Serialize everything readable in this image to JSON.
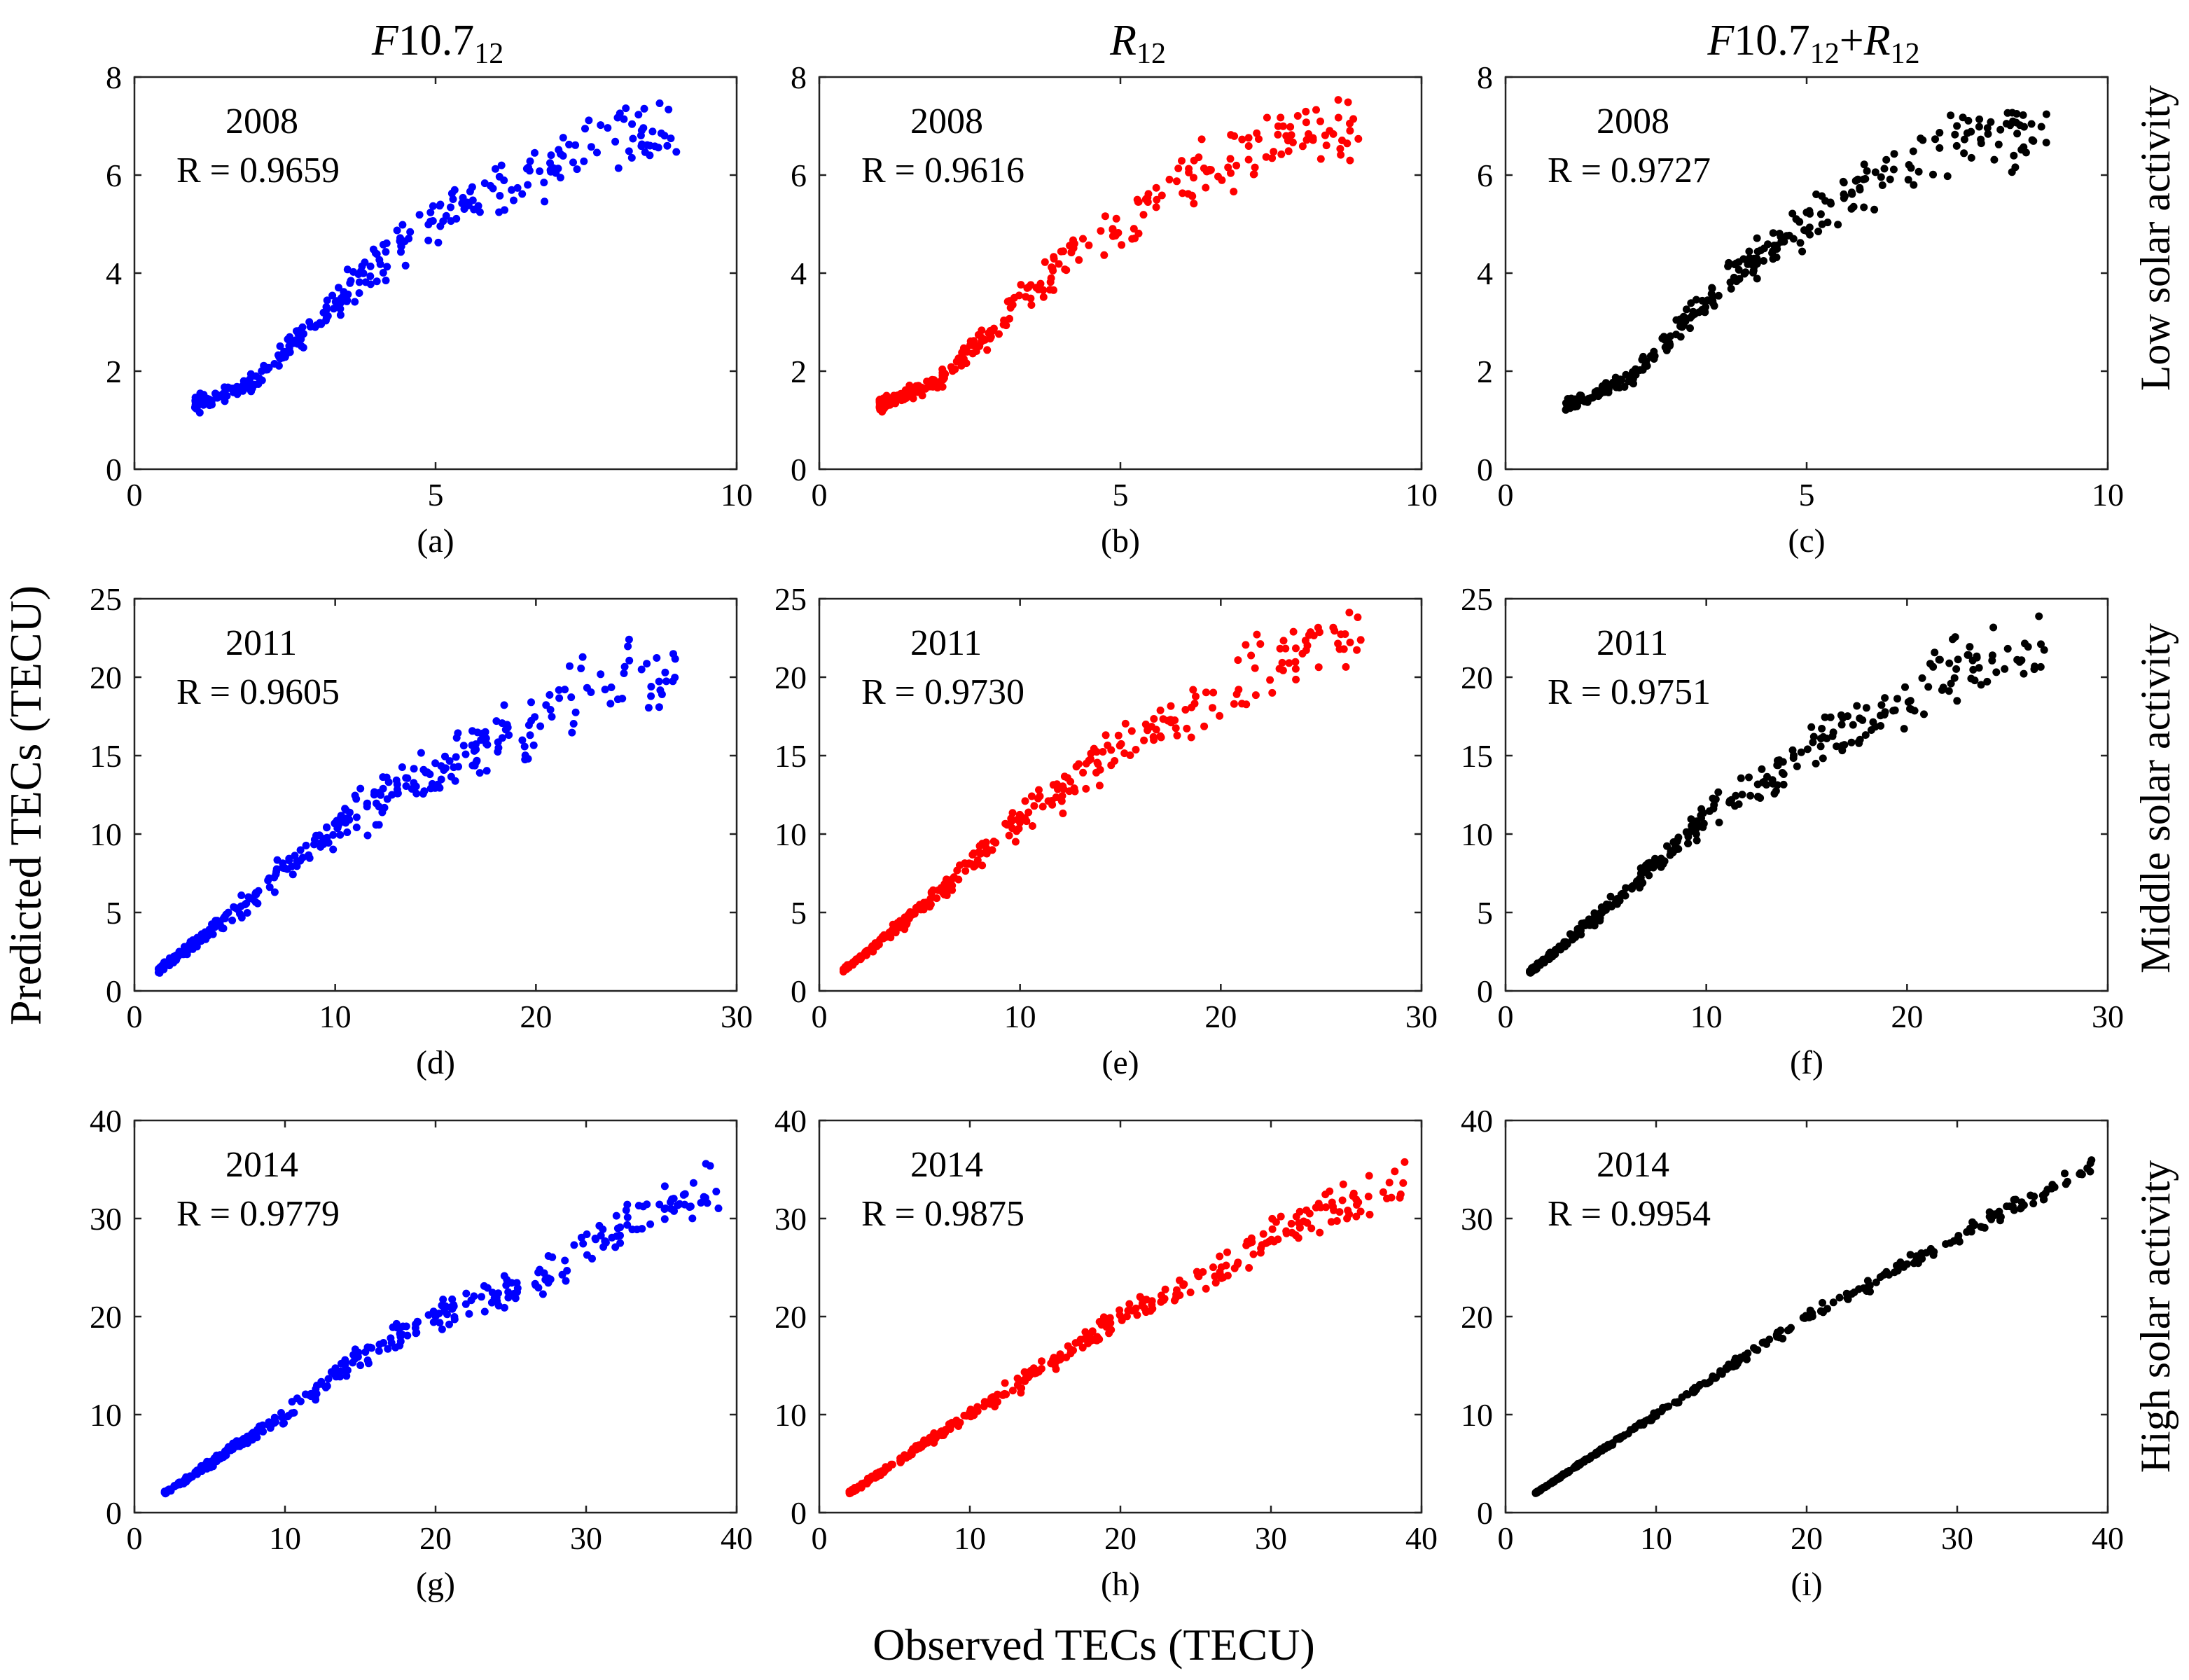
{
  "figure": {
    "y_label": "Predicted TECs (TECU)",
    "x_label": "Observed TECs (TECU)",
    "columns": [
      {
        "title_italic": "F",
        "title_main": "10.7",
        "title_sub": "12",
        "color": "#0000ff"
      },
      {
        "title_italic": "R",
        "title_main": "",
        "title_sub": "12",
        "color": "#ff0000"
      },
      {
        "title_italic": "F",
        "title_main": "10.7",
        "title_sub": "12",
        "title_plus": "+",
        "title_italic2": "R",
        "title_sub2": "12",
        "color": "#000000"
      }
    ],
    "rows": [
      {
        "label": "Low solar activity"
      },
      {
        "label": "Middle solar activity"
      },
      {
        "label": "High solar activity"
      }
    ]
  },
  "chart_data": [
    {
      "type": "scatter",
      "panel": "(a)",
      "year": "2008",
      "r_text": "R = 0.9659",
      "color": "#0000ff",
      "xlim": [
        0,
        10
      ],
      "ylim": [
        0,
        8
      ],
      "xticks": [
        0,
        5,
        10
      ],
      "yticks": [
        0,
        2,
        4,
        6,
        8
      ],
      "seed": 11,
      "n": 300,
      "noise": 0.1,
      "pts": [
        [
          1.0,
          1.3
        ],
        [
          2,
          1.8
        ],
        [
          3,
          3.0
        ],
        [
          4,
          4.2
        ],
        [
          5,
          5.0
        ],
        [
          6,
          5.7
        ],
        [
          7,
          6.3
        ],
        [
          8,
          6.8
        ],
        [
          9,
          6.8
        ]
      ]
    },
    {
      "type": "scatter",
      "panel": "(b)",
      "year": "2008",
      "r_text": "R = 0.9616",
      "color": "#ff0000",
      "xlim": [
        0,
        10
      ],
      "ylim": [
        0,
        8
      ],
      "xticks": [
        0,
        5,
        10
      ],
      "yticks": [
        0,
        2,
        4,
        6,
        8
      ],
      "seed": 12,
      "n": 300,
      "noise": 0.1,
      "pts": [
        [
          1.0,
          1.3
        ],
        [
          2,
          1.8
        ],
        [
          3,
          3.0
        ],
        [
          4,
          4.2
        ],
        [
          5,
          5.0
        ],
        [
          6,
          5.8
        ],
        [
          7,
          6.5
        ],
        [
          8,
          6.9
        ],
        [
          9,
          6.9
        ]
      ]
    },
    {
      "type": "scatter",
      "panel": "(c)",
      "year": "2008",
      "r_text": "R = 0.9727",
      "color": "#000000",
      "xlim": [
        0,
        10
      ],
      "ylim": [
        0,
        8
      ],
      "xticks": [
        0,
        5,
        10
      ],
      "yticks": [
        0,
        2,
        4,
        6,
        8
      ],
      "seed": 13,
      "n": 300,
      "noise": 0.09,
      "pts": [
        [
          1.0,
          1.3
        ],
        [
          2,
          1.8
        ],
        [
          3,
          3.0
        ],
        [
          4,
          4.2
        ],
        [
          5,
          5.0
        ],
        [
          6,
          5.8
        ],
        [
          7,
          6.4
        ],
        [
          8,
          6.9
        ],
        [
          9,
          6.9
        ]
      ]
    },
    {
      "type": "scatter",
      "panel": "(d)",
      "year": "2011",
      "r_text": "R = 0.9605",
      "color": "#0000ff",
      "xlim": [
        0,
        30
      ],
      "ylim": [
        0,
        25
      ],
      "xticks": [
        0,
        10,
        20,
        30
      ],
      "yticks": [
        0,
        5,
        10,
        15,
        20,
        25
      ],
      "seed": 21,
      "n": 330,
      "noise": 0.13,
      "pts": [
        [
          1.2,
          1.3
        ],
        [
          5,
          5
        ],
        [
          10,
          10.5
        ],
        [
          15,
          14.5
        ],
        [
          20,
          17
        ],
        [
          22,
          18.6
        ],
        [
          27,
          20.4
        ]
      ]
    },
    {
      "type": "scatter",
      "panel": "(e)",
      "year": "2011",
      "r_text": "R = 0.9730",
      "color": "#ff0000",
      "xlim": [
        0,
        30
      ],
      "ylim": [
        0,
        25
      ],
      "xticks": [
        0,
        10,
        20,
        30
      ],
      "yticks": [
        0,
        5,
        10,
        15,
        20,
        25
      ],
      "seed": 22,
      "n": 330,
      "noise": 0.1,
      "pts": [
        [
          1.2,
          1.3
        ],
        [
          5,
          5.2
        ],
        [
          10,
          11
        ],
        [
          15,
          15.5
        ],
        [
          20,
          19
        ],
        [
          22,
          21
        ],
        [
          27,
          22.5
        ]
      ]
    },
    {
      "type": "scatter",
      "panel": "(f)",
      "year": "2011",
      "r_text": "R = 0.9751",
      "color": "#000000",
      "xlim": [
        0,
        30
      ],
      "ylim": [
        0,
        25
      ],
      "xticks": [
        0,
        10,
        20,
        30
      ],
      "yticks": [
        0,
        5,
        10,
        15,
        20,
        25
      ],
      "seed": 23,
      "n": 330,
      "noise": 0.1,
      "pts": [
        [
          1.2,
          1.2
        ],
        [
          5,
          5.2
        ],
        [
          10,
          11
        ],
        [
          15,
          15.2
        ],
        [
          20,
          18.5
        ],
        [
          22,
          20.5
        ],
        [
          27,
          21.8
        ]
      ]
    },
    {
      "type": "scatter",
      "panel": "(g)",
      "year": "2014",
      "r_text": "R = 0.9779",
      "color": "#0000ff",
      "xlim": [
        0,
        40
      ],
      "ylim": [
        0,
        40
      ],
      "xticks": [
        0,
        10,
        20,
        30,
        40
      ],
      "yticks": [
        0,
        10,
        20,
        30,
        40
      ],
      "seed": 31,
      "n": 340,
      "noise": 0.08,
      "pts": [
        [
          2,
          2
        ],
        [
          10,
          10
        ],
        [
          15,
          16
        ],
        [
          20,
          20
        ],
        [
          27,
          24
        ],
        [
          30,
          27.5
        ],
        [
          39,
          34
        ]
      ]
    },
    {
      "type": "scatter",
      "panel": "(h)",
      "year": "2014",
      "r_text": "R = 0.9875",
      "color": "#ff0000",
      "xlim": [
        0,
        40
      ],
      "ylim": [
        0,
        40
      ],
      "xticks": [
        0,
        10,
        20,
        30,
        40
      ],
      "yticks": [
        0,
        10,
        20,
        30,
        40
      ],
      "seed": 32,
      "n": 340,
      "noise": 0.07,
      "pts": [
        [
          2,
          2
        ],
        [
          10,
          10
        ],
        [
          15,
          15
        ],
        [
          20,
          20
        ],
        [
          27,
          25
        ],
        [
          30,
          28.5
        ],
        [
          39,
          34
        ]
      ]
    },
    {
      "type": "scatter",
      "panel": "(i)",
      "year": "2014",
      "r_text": "R = 0.9954",
      "color": "#000000",
      "xlim": [
        0,
        40
      ],
      "ylim": [
        0,
        40
      ],
      "xticks": [
        0,
        10,
        20,
        30,
        40
      ],
      "yticks": [
        0,
        10,
        20,
        30,
        40
      ],
      "seed": 33,
      "n": 340,
      "noise": 0.03,
      "pts": [
        [
          2,
          2
        ],
        [
          10,
          10
        ],
        [
          20,
          20
        ],
        [
          30,
          28
        ],
        [
          39,
          35.5
        ]
      ]
    }
  ]
}
